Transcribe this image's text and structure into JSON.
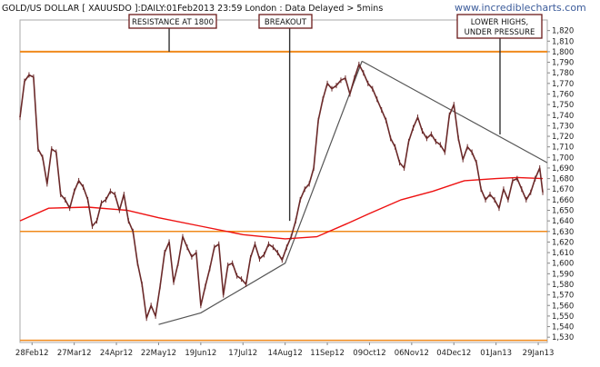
{
  "header": {
    "title": "GOLD/US DOLLAR [ XAUUSDO ]:DAILY:01Feb2013 23:59 London : Data Delayed > 5mins",
    "watermark": "www.incrediblecharts.com"
  },
  "colors": {
    "price": "#6b2a2a",
    "ma": "#ee1111",
    "support": "#f08a1c",
    "trend": "#555555",
    "annotation_border": "#6b1a1a"
  },
  "annotations": [
    {
      "id": "resistance",
      "lines": [
        "RESISTANCE AT 1800"
      ]
    },
    {
      "id": "breakout",
      "lines": [
        "BREAKOUT"
      ]
    },
    {
      "id": "lower-highs",
      "lines": [
        "LOWER HIGHS,",
        "UNDER PRESSURE"
      ]
    }
  ],
  "chart_data": {
    "type": "line",
    "title": "GOLD/US DOLLAR [ XAUUSDO ]:DAILY:01Feb2013 23:59 London : Data Delayed > 5mins",
    "x_tick_labels": [
      "28Feb12",
      "27Mar12",
      "24Apr12",
      "22May12",
      "19Jun12",
      "17Jul12",
      "14Aug12",
      "11Sep12",
      "09Oct12",
      "06Nov12",
      "04Dec12",
      "01Jan13",
      "29Jan13"
    ],
    "x_range": [
      "2012-02-20",
      "2013-02-04"
    ],
    "ylim": [
      1525,
      1830
    ],
    "y_tick_labels": [
      "1,530",
      "1,540",
      "1,550",
      "1,560",
      "1,570",
      "1,580",
      "1,590",
      "1,600",
      "1,610",
      "1,620",
      "1,630",
      "1,640",
      "1,650",
      "1,660",
      "1,670",
      "1,680",
      "1,690",
      "1,700",
      "1,710",
      "1,720",
      "1,730",
      "1,740",
      "1,750",
      "1,760",
      "1,770",
      "1,780",
      "1,790",
      "1,800",
      "1,810",
      "1,820"
    ],
    "horizontal_levels": [
      1800,
      1630,
      1527
    ],
    "trendlines": [
      {
        "points": [
          [
            "2012-05-22",
            1542
          ],
          [
            "2012-06-19",
            1553
          ],
          [
            "2012-08-14",
            1600
          ],
          [
            "2012-10-04",
            1791
          ]
        ]
      },
      {
        "points": [
          [
            "2012-10-04",
            1791
          ],
          [
            "2013-02-04",
            1695
          ]
        ]
      }
    ],
    "series": [
      {
        "type": "line",
        "x": [
          "2012-02-20",
          "2012-02-23",
          "2012-02-26",
          "2012-02-29",
          "2012-03-03",
          "2012-03-06",
          "2012-03-09",
          "2012-03-12",
          "2012-03-15",
          "2012-03-18",
          "2012-03-21",
          "2012-03-24",
          "2012-03-27",
          "2012-03-30",
          "2012-04-02",
          "2012-04-05",
          "2012-04-08",
          "2012-04-11",
          "2012-04-14",
          "2012-04-17",
          "2012-04-20",
          "2012-04-23",
          "2012-04-26",
          "2012-04-29",
          "2012-05-02",
          "2012-05-05",
          "2012-05-08",
          "2012-05-11",
          "2012-05-14",
          "2012-05-17",
          "2012-05-20",
          "2012-05-23",
          "2012-05-26",
          "2012-05-29",
          "2012-06-01",
          "2012-06-04",
          "2012-06-07",
          "2012-06-10",
          "2012-06-13",
          "2012-06-16",
          "2012-06-19",
          "2012-06-22",
          "2012-06-25",
          "2012-06-28",
          "2012-07-01",
          "2012-07-04",
          "2012-07-07",
          "2012-07-10",
          "2012-07-13",
          "2012-07-16",
          "2012-07-19",
          "2012-07-22",
          "2012-07-25",
          "2012-07-28",
          "2012-07-31",
          "2012-08-03",
          "2012-08-06",
          "2012-08-09",
          "2012-08-12",
          "2012-08-15",
          "2012-08-18",
          "2012-08-21",
          "2012-08-24",
          "2012-08-27",
          "2012-08-30",
          "2012-09-02",
          "2012-09-05",
          "2012-09-08",
          "2012-09-11",
          "2012-09-14",
          "2012-09-17",
          "2012-09-20",
          "2012-09-23",
          "2012-09-26",
          "2012-09-29",
          "2012-10-02",
          "2012-10-05",
          "2012-10-08",
          "2012-10-11",
          "2012-10-14",
          "2012-10-17",
          "2012-10-20",
          "2012-10-23",
          "2012-10-26",
          "2012-10-29",
          "2012-11-01",
          "2012-11-04",
          "2012-11-07",
          "2012-11-10",
          "2012-11-13",
          "2012-11-16",
          "2012-11-19",
          "2012-11-22",
          "2012-11-25",
          "2012-11-28",
          "2012-12-01",
          "2012-12-04",
          "2012-12-07",
          "2012-12-10",
          "2012-12-13",
          "2012-12-16",
          "2012-12-19",
          "2012-12-22",
          "2012-12-25",
          "2012-12-28",
          "2012-12-31",
          "2013-01-03",
          "2013-01-06",
          "2013-01-09",
          "2013-01-12",
          "2013-01-15",
          "2013-01-18",
          "2013-01-21",
          "2013-01-24",
          "2013-01-27",
          "2013-01-30",
          "2013-02-01"
        ],
        "values": [
          1738,
          1772,
          1778,
          1776,
          1708,
          1700,
          1675,
          1708,
          1705,
          1665,
          1660,
          1652,
          1668,
          1678,
          1672,
          1660,
          1635,
          1640,
          1657,
          1660,
          1668,
          1665,
          1650,
          1665,
          1640,
          1630,
          1600,
          1580,
          1548,
          1560,
          1550,
          1578,
          1610,
          1620,
          1582,
          1600,
          1625,
          1615,
          1606,
          1610,
          1560,
          1578,
          1595,
          1615,
          1618,
          1570,
          1598,
          1600,
          1588,
          1585,
          1580,
          1605,
          1618,
          1604,
          1608,
          1618,
          1615,
          1610,
          1603,
          1615,
          1625,
          1640,
          1660,
          1670,
          1675,
          1690,
          1735,
          1755,
          1770,
          1765,
          1768,
          1773,
          1775,
          1760,
          1775,
          1788,
          1780,
          1770,
          1765,
          1755,
          1745,
          1735,
          1718,
          1710,
          1695,
          1690,
          1715,
          1728,
          1738,
          1725,
          1718,
          1722,
          1715,
          1712,
          1705,
          1740,
          1750,
          1718,
          1698,
          1710,
          1705,
          1695,
          1670,
          1660,
          1665,
          1660,
          1652,
          1670,
          1660,
          1678,
          1680,
          1670,
          1660,
          1667,
          1680,
          1690,
          1667
        ]
      },
      {
        "type": "line",
        "x": [
          "2012-02-20",
          "2012-03-10",
          "2012-04-05",
          "2012-05-01",
          "2012-05-22",
          "2012-06-19",
          "2012-07-17",
          "2012-08-14",
          "2012-09-04",
          "2012-09-25",
          "2012-10-09",
          "2012-10-30",
          "2012-11-20",
          "2012-12-11",
          "2013-01-01",
          "2013-01-15",
          "2013-02-01"
        ],
        "values": [
          1640,
          1652,
          1653,
          1650,
          1643,
          1635,
          1627,
          1623,
          1625,
          1638,
          1647,
          1660,
          1668,
          1678,
          1680,
          1681,
          1680
        ]
      }
    ]
  }
}
